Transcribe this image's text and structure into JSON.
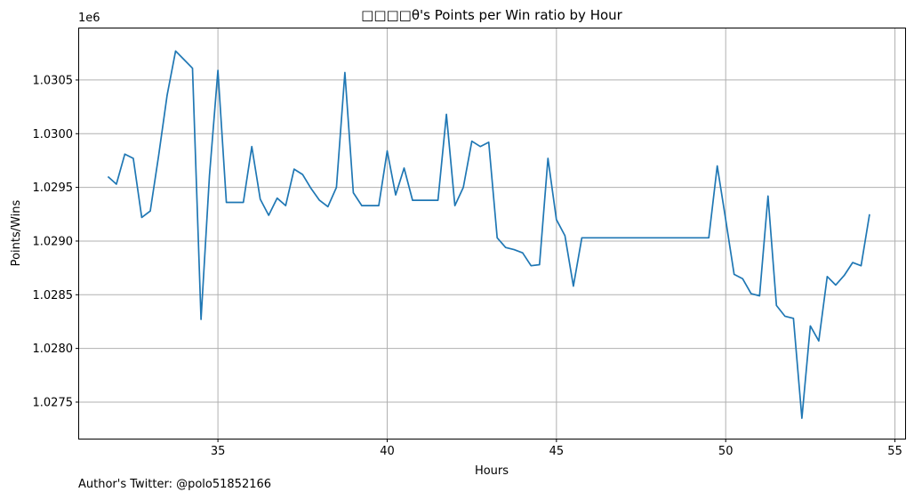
{
  "chart_data": {
    "type": "line",
    "title": "□□□□θ's Points per Win ratio by Hour",
    "xlabel": "Hours",
    "ylabel": "Points/Wins",
    "y_offset_label": "1e6",
    "xlim": [
      30.9,
      55.3
    ],
    "ylim": [
      1027160,
      1030980
    ],
    "x_ticks": [
      35,
      40,
      45,
      50,
      55
    ],
    "y_ticks": [
      1.0275,
      1.028,
      1.0285,
      1.029,
      1.0295,
      1.03,
      1.0305
    ],
    "y_tick_labels": [
      "1.0275",
      "1.0280",
      "1.0285",
      "1.0290",
      "1.0295",
      "1.0300",
      "1.0305"
    ],
    "grid": true,
    "line_color": "#1f77b4",
    "series": [
      {
        "x": [
          31.75,
          32.0,
          32.25,
          32.5,
          32.75,
          33.0,
          33.25,
          33.5,
          33.75,
          34.0,
          34.25,
          34.5,
          34.75,
          35.0,
          35.25,
          35.5,
          35.75,
          36.0,
          36.25,
          36.5,
          36.75,
          37.0,
          37.25,
          37.5,
          37.75,
          38.0,
          38.25,
          38.5,
          38.75,
          39.0,
          39.25,
          39.5,
          39.75,
          40.0,
          40.25,
          40.5,
          40.75,
          41.0,
          41.25,
          41.5,
          41.75,
          42.0,
          42.25,
          42.5,
          42.75,
          43.0,
          43.25,
          43.5,
          43.75,
          44.0,
          44.25,
          44.5,
          44.75,
          45.0,
          45.25,
          45.5,
          45.75,
          46.0,
          49.5,
          49.75,
          50.0,
          50.25,
          50.5,
          50.75,
          51.0,
          51.25,
          51.5,
          51.75,
          52.0,
          52.25,
          52.5,
          52.75,
          53.0,
          53.25,
          53.5,
          53.75,
          54.0,
          54.25
        ],
        "y": [
          1029600,
          1029530,
          1029810,
          1029770,
          1029220,
          1029280,
          1029800,
          1030360,
          1030770,
          1030690,
          1030610,
          1028270,
          1029610,
          1030590,
          1029360,
          1029360,
          1029360,
          1029880,
          1029390,
          1029240,
          1029400,
          1029330,
          1029670,
          1029620,
          1029490,
          1029380,
          1029320,
          1029500,
          1030570,
          1029450,
          1029330,
          1029330,
          1029330,
          1029840,
          1029430,
          1029680,
          1029380,
          1029380,
          1029380,
          1029380,
          1030180,
          1029330,
          1029500,
          1029930,
          1029880,
          1029920,
          1029030,
          1028940,
          1028920,
          1028890,
          1028770,
          1028780,
          1029770,
          1029200,
          1029050,
          1028580,
          1029030,
          1029030,
          1029030,
          1029700,
          1029200,
          1028690,
          1028650,
          1028510,
          1028490,
          1029420,
          1028400,
          1028300,
          1028280,
          1027350,
          1028210,
          1028070,
          1028670,
          1028590,
          1028680,
          1028800,
          1028770,
          1029250
        ]
      }
    ]
  },
  "footer_text": "Author's Twitter: @polo51852166"
}
